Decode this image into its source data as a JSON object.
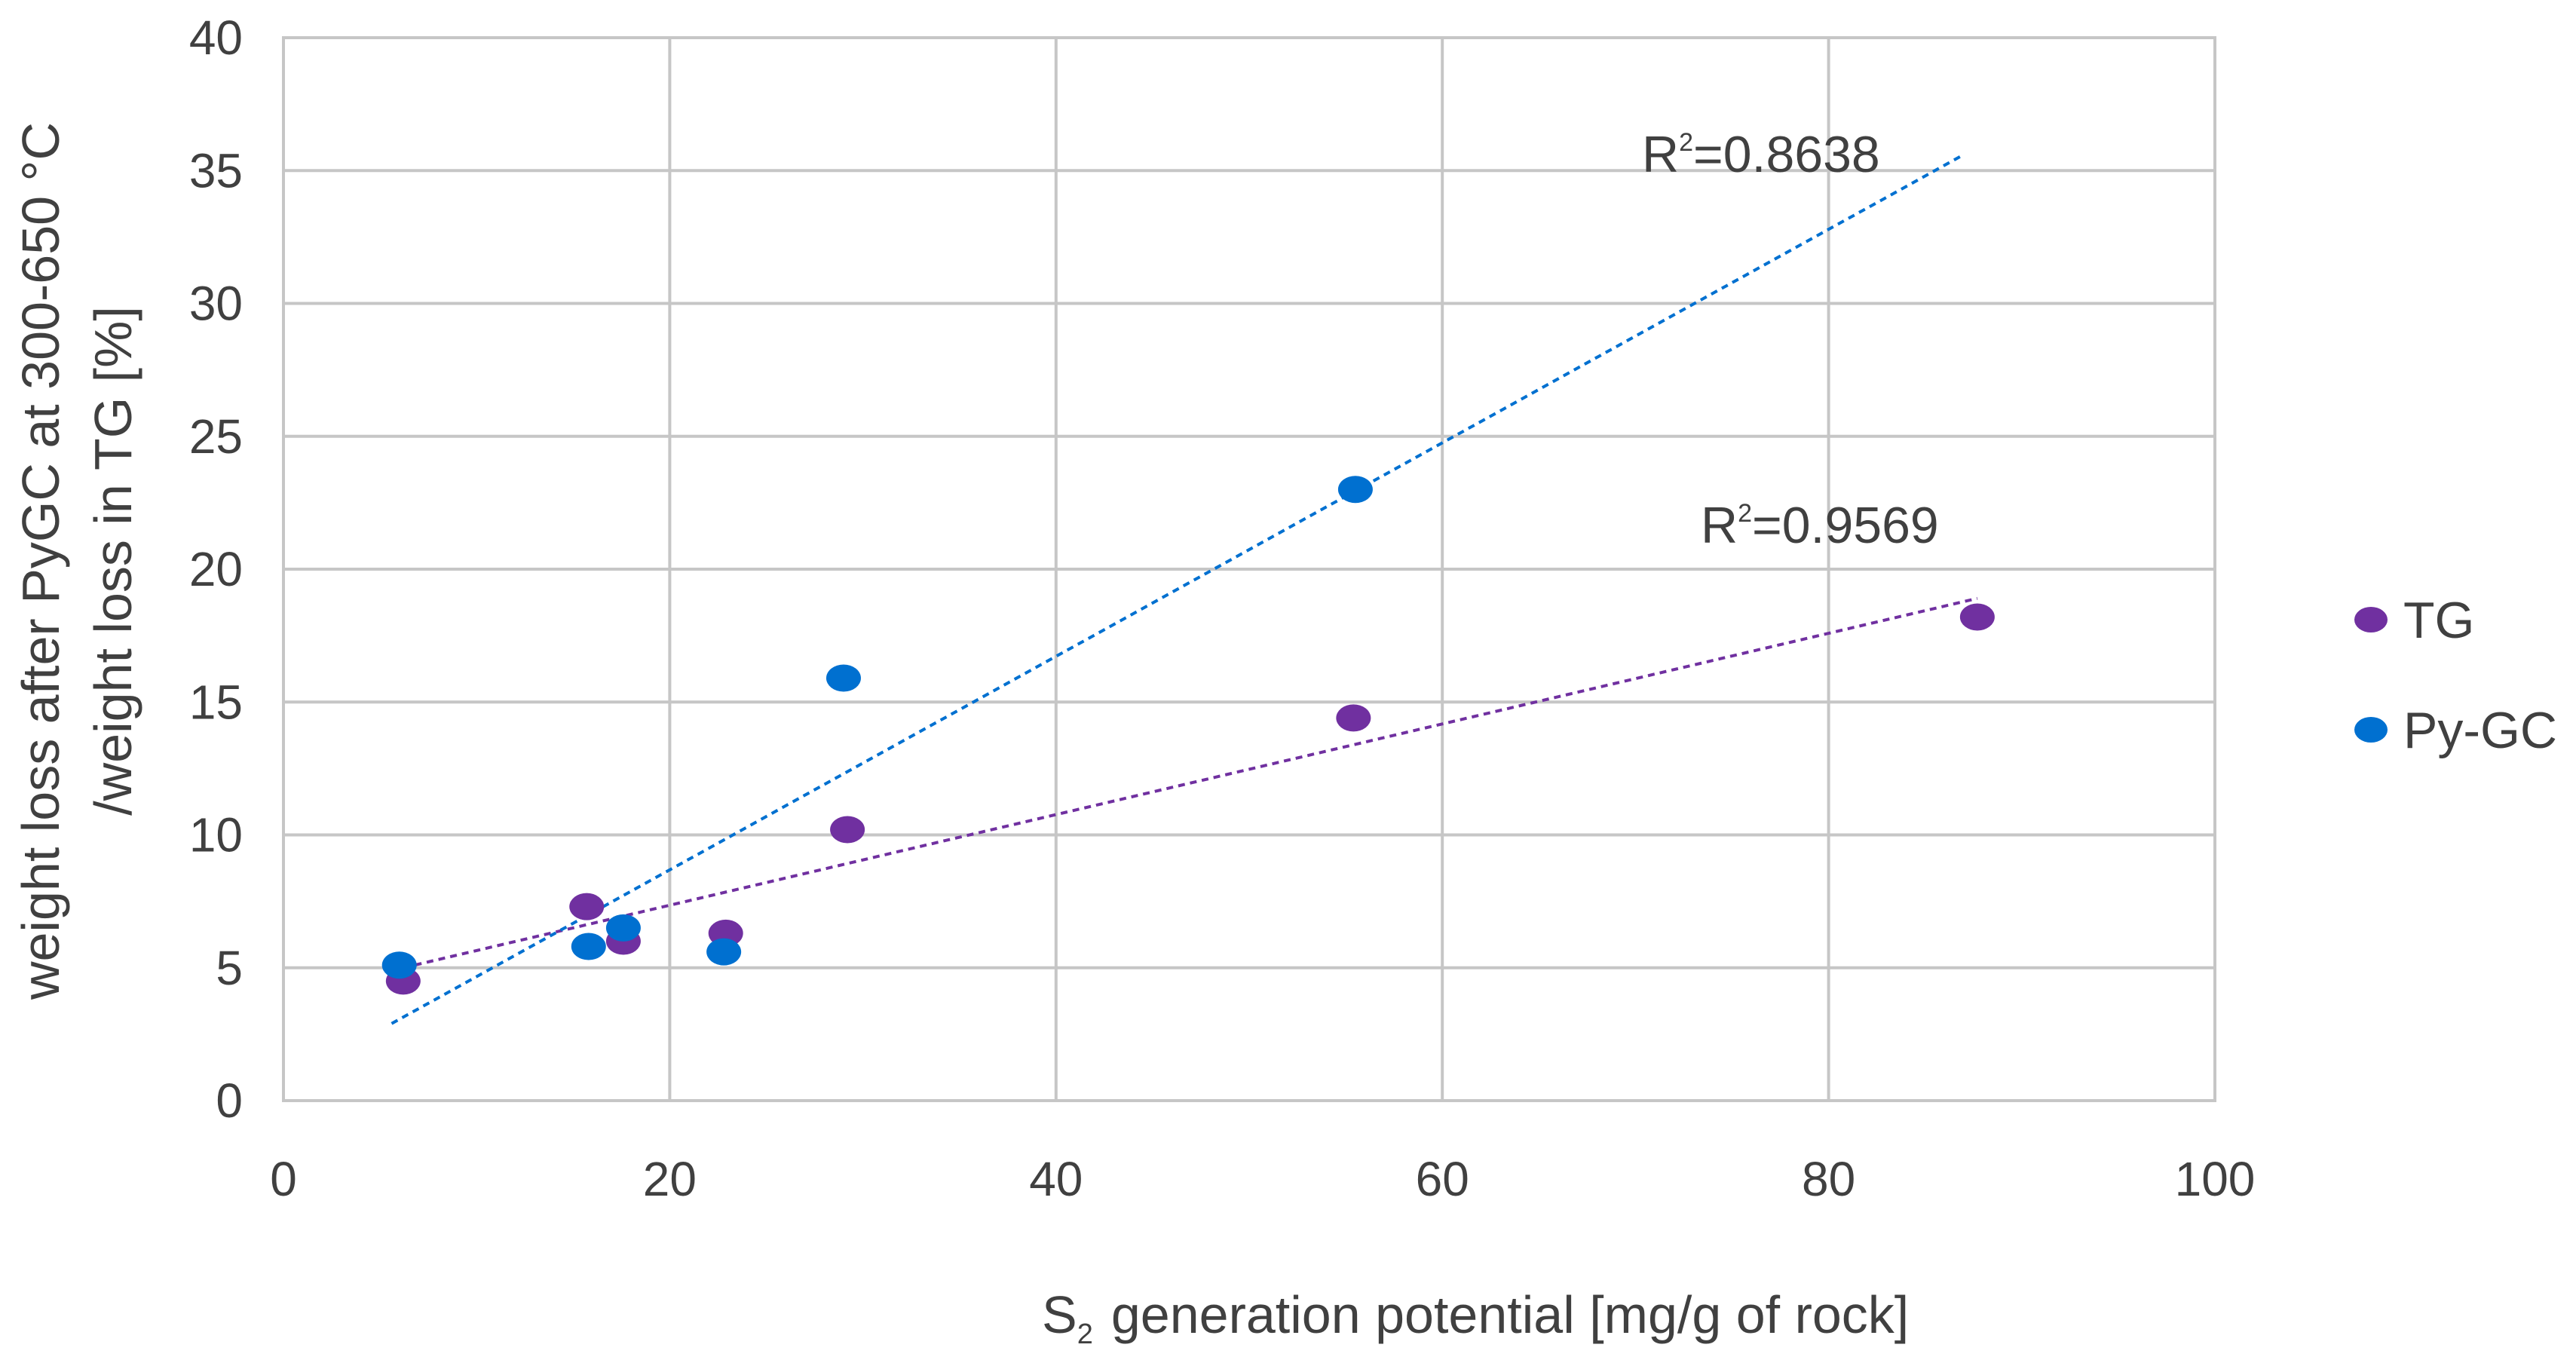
{
  "chart_data": {
    "type": "scatter",
    "title": "",
    "xlabel": "generation  potential [mg/g of rock]",
    "xlabel_prefix": "S",
    "xlabel_subscript": "2",
    "ylabel_lines": [
      "weight loss after PyGC at 300-650 °C",
      "/weight loss in TG [%]"
    ],
    "xlim": [
      0,
      100
    ],
    "ylim": [
      0,
      40
    ],
    "xticks": [
      "0",
      "20",
      "40",
      "60",
      "80",
      "100"
    ],
    "yticks": [
      "0",
      "5",
      "10",
      "15",
      "20",
      "25",
      "30",
      "35",
      "40"
    ],
    "grid": true,
    "legend_position": "right",
    "series": [
      {
        "name": "TG",
        "color": "#7030a0",
        "points": [
          [
            6.2,
            4.5
          ],
          [
            15.7,
            7.3
          ],
          [
            17.6,
            6.0
          ],
          [
            22.9,
            6.3
          ],
          [
            29.2,
            10.2
          ],
          [
            55.4,
            14.4
          ],
          [
            87.7,
            18.2
          ]
        ],
        "trendline": {
          "x": [
            6.2,
            87.7
          ],
          "y": [
            5.0,
            18.9
          ]
        },
        "r2_label": "=0.9569",
        "r2_position": "x80y20"
      },
      {
        "name": "Py-GC",
        "color": "#0070d0",
        "points": [
          [
            6.0,
            5.1
          ],
          [
            15.8,
            5.8
          ],
          [
            17.6,
            6.5
          ],
          [
            22.8,
            5.6
          ],
          [
            29.0,
            15.9
          ],
          [
            55.5,
            23.0
          ]
        ],
        "trendline": {
          "x": [
            5.6,
            87.0
          ],
          "y": [
            2.9,
            35.6
          ]
        },
        "r2_label": "=0.8638",
        "r2_position": "x70y35"
      }
    ]
  }
}
